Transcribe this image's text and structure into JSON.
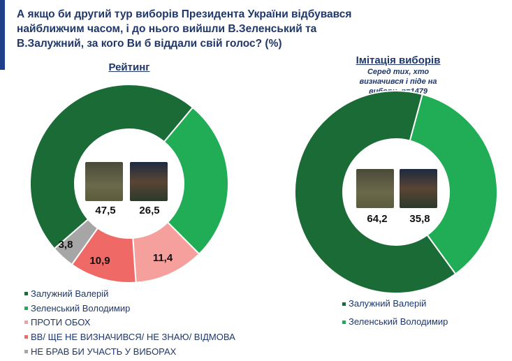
{
  "title": "А якщо би другий тур виборів Президента України відбувався найближчим часом, і до нього вийшли В.Зеленський та В.Залужний, за кого Ви б віддали свій голос? (%)",
  "chart_data": [
    {
      "type": "pie",
      "donut": true,
      "title": "Рейтинг",
      "categories": [
        "Залужний Валерій",
        "Зеленський Володимир",
        "ПРОТИ ОБОХ",
        "ВВ/ ЩЕ НЕ ВИЗНАЧИВСЯ/ НЕ ЗНАЮ/ ВІДМОВА",
        "НЕ БРАВ БИ УЧАСТЬ У ВИБОРАХ"
      ],
      "values": [
        47.5,
        26.5,
        11.4,
        10.9,
        3.8
      ],
      "labels": [
        "47,5",
        "26,5",
        "11,4",
        "10,9",
        "3,8"
      ],
      "colors": [
        "#1b6b36",
        "#21ad55",
        "#f6a09e",
        "#ef6a66",
        "#a6a6a6"
      ],
      "legend": "bottom-left"
    },
    {
      "type": "pie",
      "donut": true,
      "title": "Імітація виборів",
      "subtitle": "Серед тих, хто визначився і піде на вибори, n=1479",
      "categories": [
        "Залужний Валерій",
        "Зеленський Володимир"
      ],
      "values": [
        64.2,
        35.8
      ],
      "labels": [
        "64,2",
        "35,8"
      ],
      "colors": [
        "#1b6b36",
        "#21ad55"
      ],
      "legend": "bottom"
    }
  ]
}
